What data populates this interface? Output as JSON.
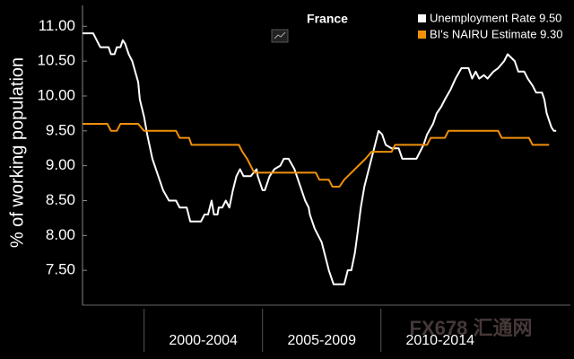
{
  "chart_data": {
    "type": "line",
    "title": "France",
    "y_label": "% of working population",
    "watermark": "FX678 汇通网",
    "xlim": [
      1997.4,
      2018.0
    ],
    "xticks": [
      {
        "value": 2000,
        "label": "2000-2004"
      },
      {
        "value": 2005,
        "label": "2005-2009"
      },
      {
        "value": 2010,
        "label": "2010-2014"
      }
    ],
    "ylim": [
      7.0,
      11.3
    ],
    "yticks": [
      {
        "value": 7.5,
        "label": "7.50"
      },
      {
        "value": 8.0,
        "label": "8.00"
      },
      {
        "value": 8.5,
        "label": "8.50"
      },
      {
        "value": 9.0,
        "label": "9.00"
      },
      {
        "value": 9.5,
        "label": "9.50"
      },
      {
        "value": 10.0,
        "label": "10.00"
      },
      {
        "value": 10.5,
        "label": "10.50"
      },
      {
        "value": 11.0,
        "label": "11.00"
      }
    ],
    "grid": false,
    "legend": "top-right",
    "series": [
      {
        "name": "Unemployment Rate 9.50",
        "color": "#ffffff",
        "x": [
          1997.4,
          1997.85,
          1998.0,
          1998.15,
          1998.5,
          1998.6,
          1998.75,
          1998.85,
          1999.0,
          1999.1,
          1999.2,
          1999.35,
          1999.5,
          1999.75,
          1999.82,
          2000.0,
          2000.13,
          2000.35,
          2000.6,
          2000.8,
          2001.05,
          2001.35,
          2001.5,
          2001.8,
          2001.95,
          2002.4,
          2002.55,
          2002.7,
          2002.85,
          2002.95,
          2003.1,
          2003.15,
          2003.3,
          2003.45,
          2003.6,
          2003.75,
          2003.9,
          2004.05,
          2004.2,
          2004.5,
          2004.75,
          2004.8,
          2005.0,
          2005.1,
          2005.3,
          2005.5,
          2005.75,
          2005.9,
          2006.1,
          2006.35,
          2006.5,
          2006.65,
          2006.8,
          2006.95,
          2007.0,
          2007.2,
          2007.35,
          2007.5,
          2007.65,
          2007.8,
          2008.0,
          2008.45,
          2008.6,
          2008.75,
          2008.9,
          2009.0,
          2009.15,
          2009.3,
          2009.45,
          2009.6,
          2009.75,
          2009.9,
          2010.05,
          2010.2,
          2010.45,
          2010.75,
          2010.9,
          2011.2,
          2011.5,
          2011.65,
          2011.8,
          2011.95,
          2012.2,
          2012.35,
          2012.55,
          2012.7,
          2012.95,
          2013.15,
          2013.4,
          2013.7,
          2013.85,
          2014.0,
          2014.15,
          2014.35,
          2014.5,
          2014.75,
          2014.95,
          2015.2,
          2015.35,
          2015.5,
          2015.65,
          2015.8,
          2016.05,
          2016.2,
          2016.4,
          2016.55,
          2016.8,
          2016.9,
          2017.0,
          2017.2,
          2017.3,
          2017.4
        ],
        "values": [
          10.9,
          10.9,
          10.8,
          10.7,
          10.7,
          10.6,
          10.6,
          10.7,
          10.7,
          10.8,
          10.75,
          10.6,
          10.5,
          10.2,
          9.95,
          9.7,
          9.45,
          9.1,
          8.85,
          8.65,
          8.5,
          8.5,
          8.4,
          8.4,
          8.2,
          8.2,
          8.3,
          8.3,
          8.5,
          8.3,
          8.3,
          8.4,
          8.4,
          8.5,
          8.4,
          8.65,
          8.85,
          8.95,
          8.85,
          8.85,
          8.95,
          8.85,
          8.65,
          8.65,
          8.85,
          8.95,
          9.0,
          9.1,
          9.1,
          8.95,
          8.8,
          8.65,
          8.5,
          8.4,
          8.3,
          8.1,
          8.0,
          7.9,
          7.7,
          7.5,
          7.3,
          7.3,
          7.5,
          7.5,
          7.75,
          8.0,
          8.4,
          8.7,
          8.9,
          9.1,
          9.3,
          9.5,
          9.45,
          9.3,
          9.25,
          9.25,
          9.1,
          9.1,
          9.1,
          9.2,
          9.3,
          9.45,
          9.6,
          9.75,
          9.85,
          9.95,
          10.1,
          10.25,
          10.4,
          10.4,
          10.25,
          10.35,
          10.25,
          10.3,
          10.25,
          10.35,
          10.4,
          10.5,
          10.6,
          10.55,
          10.5,
          10.35,
          10.35,
          10.25,
          10.15,
          10.05,
          10.05,
          9.95,
          9.75,
          9.55,
          9.5,
          9.5
        ]
      },
      {
        "name": "BI's NAIRU Estimate 9.30",
        "color": "#f0900a",
        "x": [
          1997.4,
          1998.45,
          1998.6,
          1998.85,
          1999.0,
          1999.75,
          2000.0,
          2001.35,
          2001.5,
          2001.9,
          2002.0,
          2004.0,
          2004.15,
          2004.35,
          2004.5,
          2004.65,
          2007.25,
          2007.4,
          2007.8,
          2007.95,
          2008.25,
          2008.45,
          2008.75,
          2009.05,
          2009.35,
          2009.6,
          2010.45,
          2010.6,
          2011.95,
          2012.1,
          2012.7,
          2012.85,
          2014.95,
          2015.1,
          2016.25,
          2016.4,
          2017.1
        ],
        "values": [
          9.6,
          9.6,
          9.5,
          9.5,
          9.6,
          9.6,
          9.5,
          9.5,
          9.4,
          9.4,
          9.3,
          9.3,
          9.2,
          9.1,
          9.0,
          8.9,
          8.9,
          8.8,
          8.8,
          8.7,
          8.7,
          8.8,
          8.9,
          9.0,
          9.1,
          9.2,
          9.2,
          9.3,
          9.3,
          9.4,
          9.4,
          9.5,
          9.5,
          9.4,
          9.4,
          9.3,
          9.3
        ]
      }
    ]
  }
}
